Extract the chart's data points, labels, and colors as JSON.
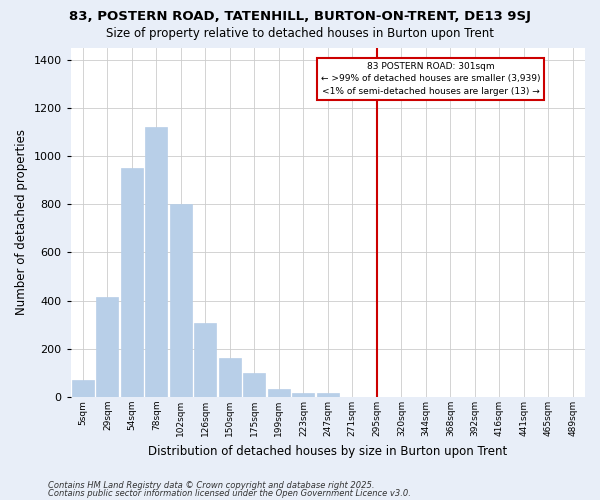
{
  "title1": "83, POSTERN ROAD, TATENHILL, BURTON-ON-TRENT, DE13 9SJ",
  "title2": "Size of property relative to detached houses in Burton upon Trent",
  "xlabel": "Distribution of detached houses by size in Burton upon Trent",
  "ylabel": "Number of detached properties",
  "categories": [
    "5sqm",
    "29sqm",
    "54sqm",
    "78sqm",
    "102sqm",
    "126sqm",
    "150sqm",
    "175sqm",
    "199sqm",
    "223sqm",
    "247sqm",
    "271sqm",
    "295sqm",
    "320sqm",
    "344sqm",
    "368sqm",
    "392sqm",
    "416sqm",
    "441sqm",
    "465sqm",
    "489sqm"
  ],
  "values": [
    70,
    415,
    950,
    1120,
    800,
    305,
    160,
    100,
    35,
    15,
    15,
    0,
    0,
    0,
    0,
    0,
    0,
    0,
    0,
    0,
    0
  ],
  "highlight_index": 12,
  "highlight_color": "#cc0000",
  "bar_color": "#b8cfe8",
  "bar_edge_color": "#b8cfe8",
  "fig_bg": "#e8eef8",
  "plot_bg": "#ffffff",
  "annotation_title": "83 POSTERN ROAD: 301sqm",
  "annotation_line1": "← >99% of detached houses are smaller (3,939)",
  "annotation_line2": "<1% of semi-detached houses are larger (13) →",
  "ylim": [
    0,
    1450
  ],
  "yticks": [
    0,
    200,
    400,
    600,
    800,
    1000,
    1200,
    1400
  ],
  "footer1": "Contains HM Land Registry data © Crown copyright and database right 2025.",
  "footer2": "Contains public sector information licensed under the Open Government Licence v3.0."
}
